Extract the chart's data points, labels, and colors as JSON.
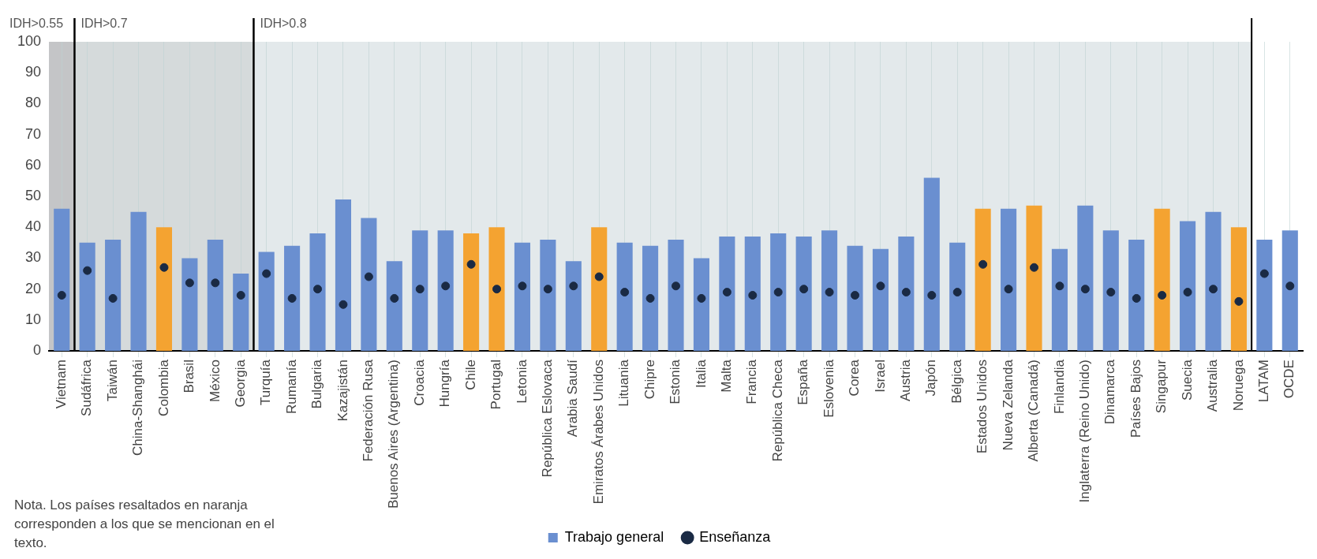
{
  "chart_data": {
    "type": "bar",
    "categories": [
      "Vietnam",
      "Sudáfrica",
      "Taiwán",
      "China-Shanghái",
      "Colombia",
      "Brasil",
      "México",
      "Georgia",
      "Turquía",
      "Rumanía",
      "Bulgaria",
      "Kazajistán",
      "Federación Rusa",
      "Buenos Aires (Argentina)",
      "Croacia",
      "Hungría",
      "Chile",
      "Portugal",
      "Letonia",
      "República Eslovaca",
      "Arabia Saudí",
      "Emiratos Árabes Unidos",
      "Lituania",
      "Chipre",
      "Estonia",
      "Italia",
      "Malta",
      "Francia",
      "República Checa",
      "España",
      "Eslovenia",
      "Corea",
      "Israel",
      "Austria",
      "Japón",
      "Bélgica",
      "Estados Unidos",
      "Nueva Zelanda",
      "Alberta (Canadá)",
      "Finlandia",
      "Inglaterra (Reino Unido)",
      "Dinamarca",
      "Países Bajos",
      "Singapur",
      "Suecia",
      "Australia",
      "Noruega",
      "LATAM",
      "OCDE"
    ],
    "series": [
      {
        "name": "Trabajo general",
        "color": "#6a8fd0",
        "colors": [
          "#6a8fd0",
          "#6a8fd0",
          "#6a8fd0",
          "#6a8fd0",
          "#f4a331",
          "#6a8fd0",
          "#6a8fd0",
          "#6a8fd0",
          "#6a8fd0",
          "#6a8fd0",
          "#6a8fd0",
          "#6a8fd0",
          "#6a8fd0",
          "#6a8fd0",
          "#6a8fd0",
          "#6a8fd0",
          "#f4a331",
          "#f4a331",
          "#6a8fd0",
          "#6a8fd0",
          "#6a8fd0",
          "#f4a331",
          "#6a8fd0",
          "#6a8fd0",
          "#6a8fd0",
          "#6a8fd0",
          "#6a8fd0",
          "#6a8fd0",
          "#6a8fd0",
          "#6a8fd0",
          "#6a8fd0",
          "#6a8fd0",
          "#6a8fd0",
          "#6a8fd0",
          "#6a8fd0",
          "#6a8fd0",
          "#f4a331",
          "#6a8fd0",
          "#f4a331",
          "#6a8fd0",
          "#6a8fd0",
          "#6a8fd0",
          "#6a8fd0",
          "#f4a331",
          "#6a8fd0",
          "#6a8fd0",
          "#f4a331",
          "#6a8fd0",
          "#6a8fd0"
        ],
        "values": [
          46,
          35,
          36,
          45,
          40,
          30,
          36,
          25,
          32,
          34,
          38,
          49,
          43,
          29,
          39,
          39,
          38,
          40,
          35,
          36,
          29,
          40,
          35,
          34,
          36,
          30,
          37,
          37,
          38,
          37,
          39,
          34,
          33,
          37,
          56,
          35,
          46,
          46,
          47,
          33,
          47,
          39,
          36,
          46,
          42,
          45,
          40,
          36,
          39
        ]
      },
      {
        "name": "Enseñanza",
        "type": "scatter",
        "color": "#1a2a44",
        "marker": "circle",
        "x": [
          "Vietnam",
          "Sudáfrica",
          "Taiwán",
          "China-Shanghái",
          "Colombia",
          "Brasil",
          "México",
          "Georgia",
          "Turquía",
          "Rumanía",
          "Bulgaria",
          "Kazajistán",
          "Federación Rusa",
          "Buenos Aires (Argentina)",
          "Croacia",
          "Hungría",
          "Chile",
          "Portugal",
          "Letonia",
          "República Eslovaca",
          "Arabia Saudí",
          "Emiratos Árabes Unidos",
          "Lituania",
          "Chipre",
          "Estonia",
          "Italia",
          "Malta",
          "Francia",
          "República Checa",
          "España",
          "Eslovenia",
          "Corea",
          "Israel",
          "Austria",
          "Japón",
          "Bélgica",
          "Estados Unidos",
          "Nueva Zelanda",
          "Alberta (Canadá)",
          "Finlandia",
          "Inglaterra (Reino Unido)",
          "Dinamarca",
          "Países Bajos",
          "Singapur",
          "Suecia",
          "Australia",
          "Noruega",
          "LATAM",
          "OCDE"
        ],
        "values": [
          18,
          26,
          17,
          null,
          27,
          22,
          22,
          18,
          25,
          17,
          20,
          15,
          24,
          17,
          20,
          21,
          28,
          20,
          21,
          20,
          21,
          24,
          19,
          17,
          21,
          17,
          19,
          18,
          19,
          20,
          19,
          18,
          21,
          19,
          18,
          19,
          28,
          20,
          27,
          21,
          20,
          19,
          17,
          18,
          19,
          20,
          16,
          25,
          21
        ]
      }
    ],
    "ylim": [
      0,
      100
    ],
    "yticks": [
      0,
      10,
      20,
      30,
      40,
      50,
      60,
      70,
      80,
      90,
      100
    ],
    "grid": "x",
    "legend": "bottom",
    "bands": [
      {
        "axis": "x",
        "from": "Vietnam",
        "to": "Vietnam",
        "label": "IDH>0.55",
        "color": "#c4c5c7"
      },
      {
        "axis": "x",
        "from": "Sudáfrica",
        "to": "Georgia",
        "label": "IDH>0.7",
        "color": "#d5dadb"
      },
      {
        "axis": "x",
        "from": "Turquía",
        "to": "Noruega",
        "label": "IDH>0.8",
        "color": "#e3e9eb"
      }
    ],
    "annotations": [
      "Nota. Los países resaltados en naranja corresponden a los que se mencionan en el texto."
    ]
  }
}
